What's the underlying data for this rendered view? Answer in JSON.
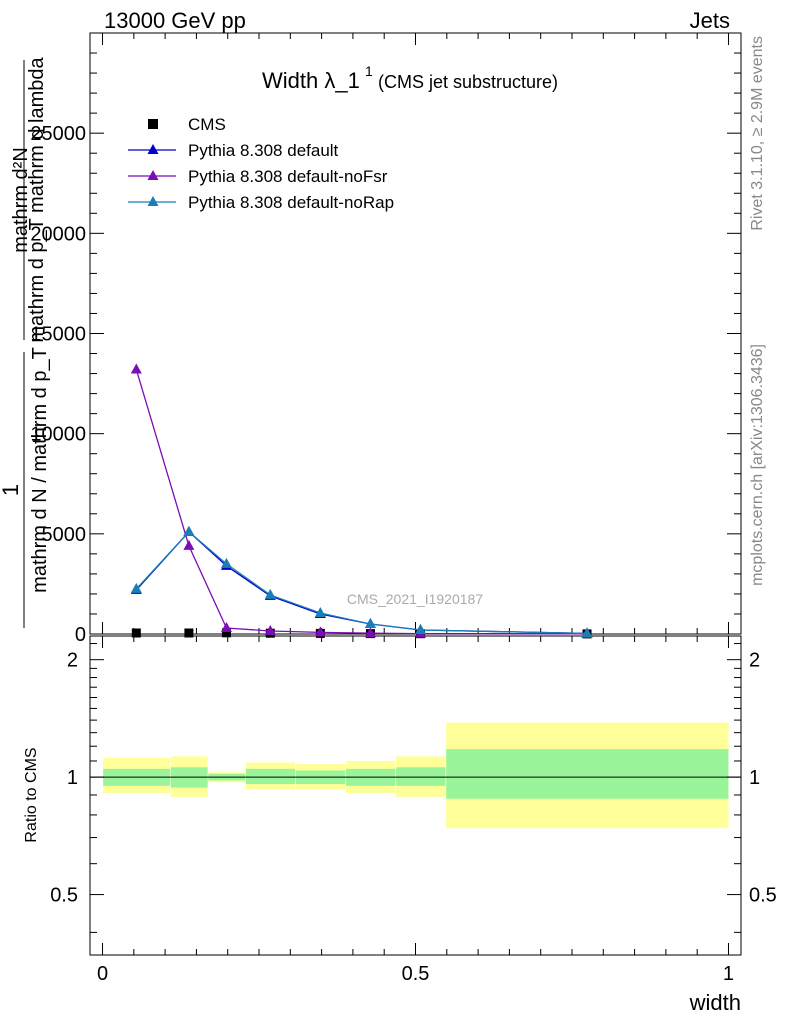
{
  "header": {
    "left": "13000 GeV pp",
    "right": "Jets"
  },
  "title": {
    "main": "Width λ_1",
    "sup": "1",
    "sub": "(CMS jet substructure)"
  },
  "side": {
    "rivet": "Rivet 3.1.10, ≥ 2.9M events",
    "site": "mcplots.cern.ch [arXiv:1306.3436]"
  },
  "watermark": "CMS_2021_I1920187",
  "ylabel_main": {
    "top": "1",
    "denominator": "mathrm d N / mathrm d p_T",
    "t_subscript": "T",
    "numerator": "mathrm d²N",
    "numerator_den": "mathrm d p_T mathrm d lambda"
  },
  "ylabel_ratio": "Ratio to CMS",
  "xlabel": "width",
  "legend": [
    {
      "label": "CMS",
      "color": "#000000",
      "marker": "square"
    },
    {
      "label": "Pythia 8.308 default",
      "color": "#0000cc",
      "marker": "triangle"
    },
    {
      "label": "Pythia 8.308 default-noFsr",
      "color": "#7b0db5",
      "marker": "triangle"
    },
    {
      "label": "Pythia 8.308 default-noRap",
      "color": "#1a7fb5",
      "marker": "triangle"
    }
  ],
  "chart_data": {
    "type": "line",
    "xlim": [
      -0.02,
      1.02
    ],
    "ylim": [
      0,
      30000
    ],
    "ratio_ylim": [
      0.35,
      2.3
    ],
    "x_ticks": [
      "0",
      "0.5",
      "1"
    ],
    "y_ticks": [
      "0",
      "5000",
      "10000",
      "15000",
      "20000",
      "25000"
    ],
    "ratio_ticks": [
      "0.5",
      "1",
      "2"
    ],
    "bins": [
      0.0,
      0.108,
      0.168,
      0.228,
      0.308,
      0.388,
      0.468,
      0.548,
      1.0
    ],
    "x": [
      0.054,
      0.138,
      0.198,
      0.268,
      0.348,
      0.428,
      0.508,
      0.774
    ],
    "series": [
      {
        "name": "CMS",
        "values": [
          50,
          50,
          60,
          40,
          30,
          20,
          15,
          5
        ]
      },
      {
        "name": "Pythia 8.308 default",
        "values": [
          2200,
          5100,
          3400,
          1900,
          1000,
          500,
          200,
          30
        ]
      },
      {
        "name": "Pythia 8.308 default-noFsr",
        "values": [
          13200,
          4400,
          300,
          150,
          80,
          40,
          20,
          10
        ]
      },
      {
        "name": "Pythia 8.308 default-noRap",
        "values": [
          2250,
          5100,
          3500,
          1950,
          1050,
          500,
          200,
          30
        ]
      }
    ],
    "ratio_band_green": [
      [
        0.95,
        1.05
      ],
      [
        0.94,
        1.06
      ],
      [
        0.98,
        1.02
      ],
      [
        0.96,
        1.05
      ],
      [
        0.96,
        1.04
      ],
      [
        0.95,
        1.05
      ],
      [
        0.95,
        1.06
      ],
      [
        0.88,
        1.18
      ]
    ],
    "ratio_band_yellow": [
      [
        0.91,
        1.12
      ],
      [
        0.89,
        1.13
      ],
      [
        0.97,
        1.03
      ],
      [
        0.93,
        1.09
      ],
      [
        0.93,
        1.08
      ],
      [
        0.91,
        1.1
      ],
      [
        0.89,
        1.13
      ],
      [
        0.74,
        1.38
      ]
    ]
  }
}
